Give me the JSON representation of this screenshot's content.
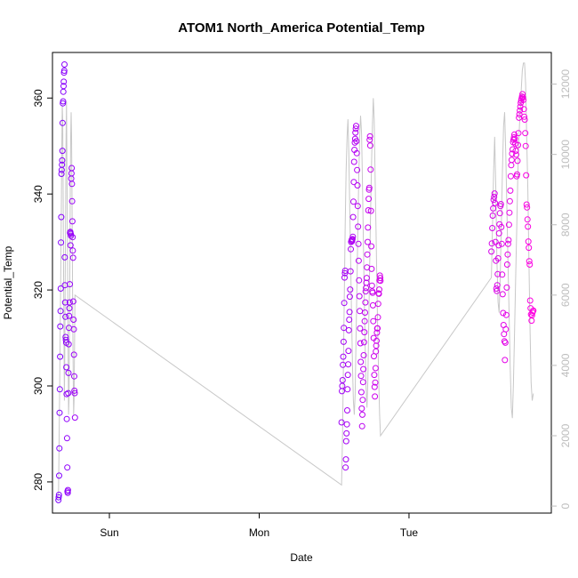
{
  "chart_data": {
    "type": "scatter",
    "title": "ATOM1 North_America Potential_Temp",
    "xlabel": "Date",
    "ylabel": "Potential_Temp",
    "x_tick_labels": [
      "Sun",
      "Mon",
      "Tue"
    ],
    "x_ticks_days": [
      0,
      1,
      2
    ],
    "xlim_days": [
      -0.38,
      2.95
    ],
    "ylim": [
      273.5,
      369.5
    ],
    "y_ticks": [
      280,
      300,
      320,
      340,
      360
    ],
    "y2_ticks": [
      0,
      2000,
      4000,
      6000,
      8000,
      10000,
      12000
    ],
    "y2lim": [
      -200,
      12900
    ],
    "grid": false,
    "colors": {
      "start": "#7f00ff",
      "end": "#ff00e0",
      "altitude_line": "#c8c8c8",
      "right_axis": "#bdbdbd"
    },
    "series": [
      {
        "group": 1,
        "x_range": [
          -0.34,
          -0.23
        ],
        "values": [
          276.2,
          276.8,
          277.3,
          281.3,
          287.0,
          294.4,
          299.3,
          306.1,
          312.4,
          315.6,
          320.3,
          329.9,
          335.2,
          344.2,
          345.0,
          346.1,
          347.0,
          349.0,
          354.8,
          358.9,
          359.3,
          361.3,
          362.5,
          363.4,
          365.3,
          365.7,
          367.0,
          326.8,
          321.0,
          317.4,
          314.4,
          310.2,
          309.6,
          309.0,
          303.9,
          298.3,
          293.1,
          289.1,
          283.0,
          278.0,
          277.7,
          278.3,
          298.5,
          302.7,
          308.7,
          312.1,
          314.6,
          316.2,
          317.4,
          321.2,
          331.9,
          332.1,
          329.3,
          331.7,
          331.3,
          343.2,
          344.3,
          345.4,
          342.1,
          338.5,
          334.3,
          331.0,
          328.2,
          326.7,
          317.6,
          313.8,
          311.8,
          306.5,
          302.0,
          299.0,
          298.5,
          293.4
        ],
        "altitude": [
          200,
          1200,
          2400,
          3600,
          4800,
          6000,
          7400,
          8800,
          10200,
          11400,
          11000,
          9000,
          7000,
          5000,
          3000,
          4500,
          6500,
          8500,
          10500,
          11500,
          10000,
          8000,
          6000,
          4000,
          2600,
          3000,
          5000,
          7000,
          9000,
          10500,
          11200,
          10500,
          9000,
          7000,
          5000,
          3500,
          2600,
          3000,
          4500,
          6000
        ]
      },
      {
        "group": 2,
        "x_range": [
          1.55,
          1.81
        ],
        "values": [
          292.4,
          298.9,
          300.0,
          301.2,
          304.4,
          306.1,
          309.2,
          312.1,
          317.3,
          322.6,
          323.5,
          324.0,
          283.0,
          284.7,
          288.5,
          290.1,
          292.0,
          294.9,
          299.3,
          302.3,
          304.5,
          307.3,
          311.6,
          313.8,
          315.4,
          318.6,
          320.1,
          323.9,
          328.5,
          330.0,
          330.3,
          330.5,
          330.2,
          330.6,
          331.1,
          335.2,
          338.4,
          342.5,
          346.7,
          349.2,
          350.7,
          351.5,
          352.8,
          353.6,
          354.2,
          351.0,
          348.5,
          345.0,
          341.8,
          337.5,
          333.2,
          329.6,
          326.1,
          322.0,
          318.7,
          315.6,
          312.0,
          308.9,
          305.0,
          302.1,
          298.7,
          295.3,
          291.6,
          294.0,
          297.1,
          300.8,
          303.5,
          306.4,
          309.1,
          311.2,
          313.5,
          315.3,
          317.4,
          319.7,
          320.4,
          321.5,
          322.5,
          324.7,
          327.4,
          330.0,
          333.0,
          336.6,
          339.0,
          340.9,
          341.3,
          351.3,
          352.0,
          350.1,
          345.1,
          336.5,
          329.1,
          324.4,
          320.9,
          319.7,
          319.4,
          316.8,
          313.5,
          310.0,
          306.2,
          302.3,
          299.8,
          297.8,
          300.7,
          303.7,
          307.2,
          308.4,
          309.4,
          311.1,
          312.0,
          312.0,
          314.3,
          317.1,
          319.3,
          319.2,
          320.1,
          322.0,
          323.0,
          322.5,
          321.9
        ],
        "altitude": [
          600,
          2000,
          4000,
          6000,
          8000,
          9500,
          10500,
          11000,
          10000,
          8500,
          7000,
          5500,
          4000,
          3000,
          2600,
          3200,
          4800,
          6400,
          8000,
          9400,
          10500,
          11100,
          10600,
          9200,
          7600,
          6000,
          4600,
          3400,
          2800,
          3600,
          5200,
          6800,
          8300,
          9700,
          10800,
          11600,
          11000,
          9400,
          7800,
          6200,
          4800,
          3600,
          2600,
          2000
        ]
      },
      {
        "group": 3,
        "x_range": [
          2.55,
          2.83
        ],
        "values": [
          328.0,
          329.7,
          332.9,
          335.5,
          337.0,
          338.8,
          339.4,
          340.1,
          338.1,
          330.0,
          326.1,
          320.3,
          319.8,
          321.0,
          323.3,
          326.6,
          329.3,
          331.8,
          333.7,
          336.0,
          337.5,
          337.9,
          333.1,
          329.6,
          323.2,
          319.1,
          315.2,
          312.7,
          310.8,
          309.3,
          305.4,
          309.0,
          311.8,
          314.8,
          320.5,
          325.3,
          327.4,
          329.6,
          330.4,
          333.6,
          336.1,
          338.5,
          340.7,
          343.7,
          346.0,
          347.1,
          348.4,
          349.3,
          350.8,
          351.3,
          351.8,
          352.4,
          351.5,
          350.5,
          349.0,
          348.2,
          343.7,
          344.1,
          346.9,
          350.2,
          352.7,
          355.9,
          356.6,
          357.4,
          358.2,
          359.0,
          359.5,
          359.9,
          360.3,
          360.8,
          360.1,
          359.6,
          357.7,
          356.1,
          355.5,
          352.7,
          350.0,
          343.9,
          337.8,
          337.2,
          334.7,
          333.2,
          330.1,
          328.8,
          326.0,
          325.3,
          317.8,
          316.2,
          314.9,
          313.6,
          314.7,
          315.3,
          315.6,
          315.7
        ],
        "altitude": [
          6500,
          8000,
          9500,
          10500,
          9000,
          7000,
          5800,
          5500,
          6500,
          8000,
          9500,
          10800,
          11200,
          10000,
          8500,
          7000,
          5500,
          4000,
          2800,
          2500,
          3500,
          5000,
          6500,
          8000,
          9500,
          10500,
          11200,
          11800,
          12400,
          12600,
          12600,
          12000,
          10500,
          9000,
          7000,
          5000,
          3500,
          3000,
          3200
        ]
      }
    ]
  }
}
